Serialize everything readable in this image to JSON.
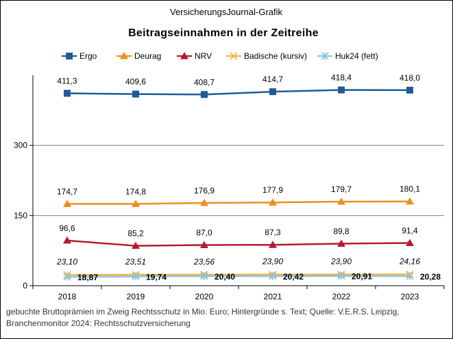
{
  "chart_data": {
    "type": "line",
    "supertitle": "VersicherungsJournal-Grafik",
    "title": "Beitragseinnahmen  in der Zeitreihe",
    "categories": [
      "2018",
      "2019",
      "2020",
      "2021",
      "2022",
      "2023"
    ],
    "ylim": [
      0,
      450
    ],
    "yticks": [
      0,
      150,
      300
    ],
    "ytick_labels": [
      "0",
      "150",
      "300"
    ],
    "grid": true,
    "legend_position": "top",
    "series": [
      {
        "name": "Ergo",
        "color": "#1F5A96",
        "marker": "square",
        "label_style": "normal",
        "values": [
          411.3,
          409.6,
          408.7,
          414.7,
          418.4,
          418.0
        ],
        "labels": [
          "411,3",
          "409,6",
          "408,7",
          "414,7",
          "418,4",
          "418,0"
        ]
      },
      {
        "name": "Deurag",
        "color": "#F08C1E",
        "marker": "triangle",
        "label_style": "normal",
        "values": [
          174.7,
          174.8,
          176.9,
          177.9,
          179.7,
          180.1
        ],
        "labels": [
          "174,7",
          "174,8",
          "176,9",
          "177,9",
          "179,7",
          "180,1"
        ]
      },
      {
        "name": "NRV",
        "color": "#B4192D",
        "marker": "triangle",
        "label_style": "normal",
        "values": [
          96.6,
          85.2,
          87.0,
          87.3,
          89.8,
          91.4
        ],
        "labels": [
          "96,6",
          "85,2",
          "87,0",
          "87,3",
          "89,8",
          "91,4"
        ]
      },
      {
        "name": "Badische (kursiv)",
        "color": "#F5B43C",
        "marker": "x",
        "label_style": "italic",
        "values": [
          23.1,
          23.51,
          23.56,
          23.9,
          23.9,
          24.16
        ],
        "labels": [
          "23,10",
          "23,51",
          "23,56",
          "23,90",
          "23,90",
          "24,16"
        ]
      },
      {
        "name": "Huk24 (fett)",
        "color": "#8CC3E6",
        "marker": "star",
        "label_style": "bold",
        "values": [
          18.87,
          19.74,
          20.4,
          20.42,
          20.91,
          20.28
        ],
        "labels": [
          "18,87",
          "19,74",
          "20,40",
          "20,42",
          "20,91",
          "20,28"
        ]
      }
    ],
    "source_lines": [
      "gebuchte  Bruttoprämien  im Zweig  Rechtsschutz in Mio. Euro; Hintergründe   s. Text;  Quelle: V.E.R.S. Leipzig,",
      "Branchenmonitor  2024:  Rechtsschutzversicherung"
    ]
  }
}
